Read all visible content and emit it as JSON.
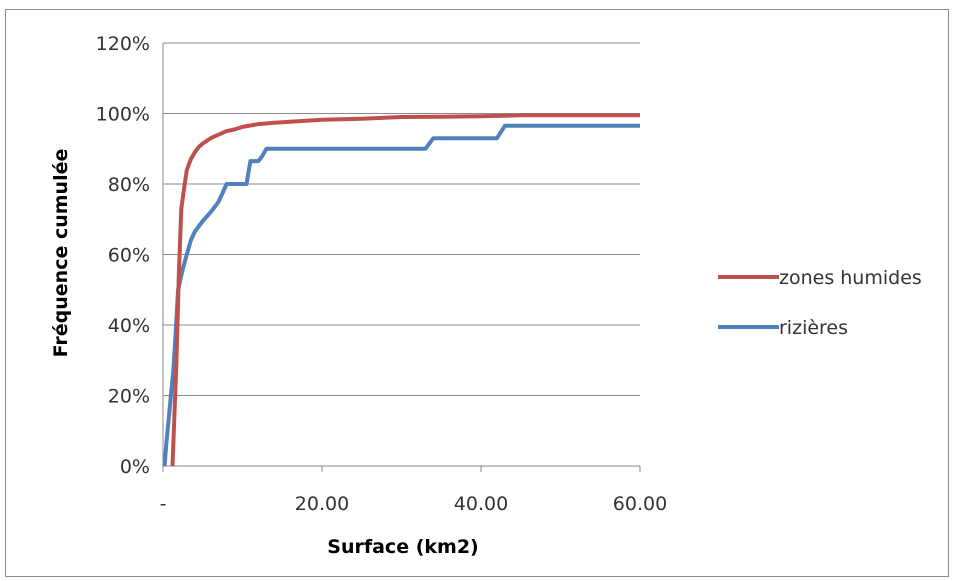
{
  "chart_data": {
    "type": "line",
    "title": "",
    "xlabel": "Surface (km2)",
    "ylabel": "Fréquence cumulée",
    "xlim": [
      0,
      60
    ],
    "ylim": [
      0,
      1.2
    ],
    "x_ticks": [
      0,
      20,
      40,
      60
    ],
    "x_tick_labels": [
      "-",
      "20.00",
      "40.00",
      "60.00"
    ],
    "y_ticks": [
      0,
      0.2,
      0.4,
      0.6,
      0.8,
      1.0,
      1.2
    ],
    "y_tick_labels": [
      "0%",
      "20%",
      "40%",
      "60%",
      "80%",
      "100%",
      "120%"
    ],
    "grid": "horizontal",
    "legend_position": "right",
    "series": [
      {
        "name": "zones humides",
        "color": "#c0504d",
        "x": [
          1.2,
          1.7,
          2.0,
          2.3,
          2.6,
          3.0,
          3.5,
          4.0,
          4.5,
          5.0,
          6.0,
          7.0,
          8.0,
          9.0,
          10.0,
          11.0,
          12.0,
          14.0,
          17.0,
          20.0,
          25.0,
          30.0,
          35.0,
          40.0,
          45.0,
          60.0
        ],
        "y": [
          0.0,
          0.3,
          0.55,
          0.73,
          0.78,
          0.84,
          0.87,
          0.89,
          0.905,
          0.915,
          0.93,
          0.94,
          0.95,
          0.955,
          0.962,
          0.966,
          0.97,
          0.974,
          0.978,
          0.982,
          0.985,
          0.99,
          0.991,
          0.992,
          0.995,
          0.995
        ]
      },
      {
        "name": "rizières",
        "color": "#4f81bd",
        "x": [
          0.2,
          0.4,
          0.7,
          1.0,
          1.3,
          1.6,
          1.9,
          2.2,
          2.5,
          3.0,
          3.5,
          4.0,
          5.0,
          6.0,
          7.0,
          8.0,
          8.5,
          9.0,
          9.5,
          10.0,
          10.5,
          11.0,
          12.0,
          12.5,
          13.0,
          20.0,
          30.0,
          33.0,
          34.0,
          38.0,
          42.0,
          43.0,
          50.0,
          60.0
        ],
        "y": [
          0.0,
          0.06,
          0.13,
          0.2,
          0.27,
          0.38,
          0.5,
          0.53,
          0.56,
          0.6,
          0.64,
          0.665,
          0.695,
          0.72,
          0.75,
          0.8,
          0.8,
          0.8,
          0.8,
          0.8,
          0.8,
          0.865,
          0.865,
          0.88,
          0.9,
          0.9,
          0.9,
          0.9,
          0.93,
          0.93,
          0.93,
          0.965,
          0.965,
          0.965
        ]
      }
    ]
  }
}
